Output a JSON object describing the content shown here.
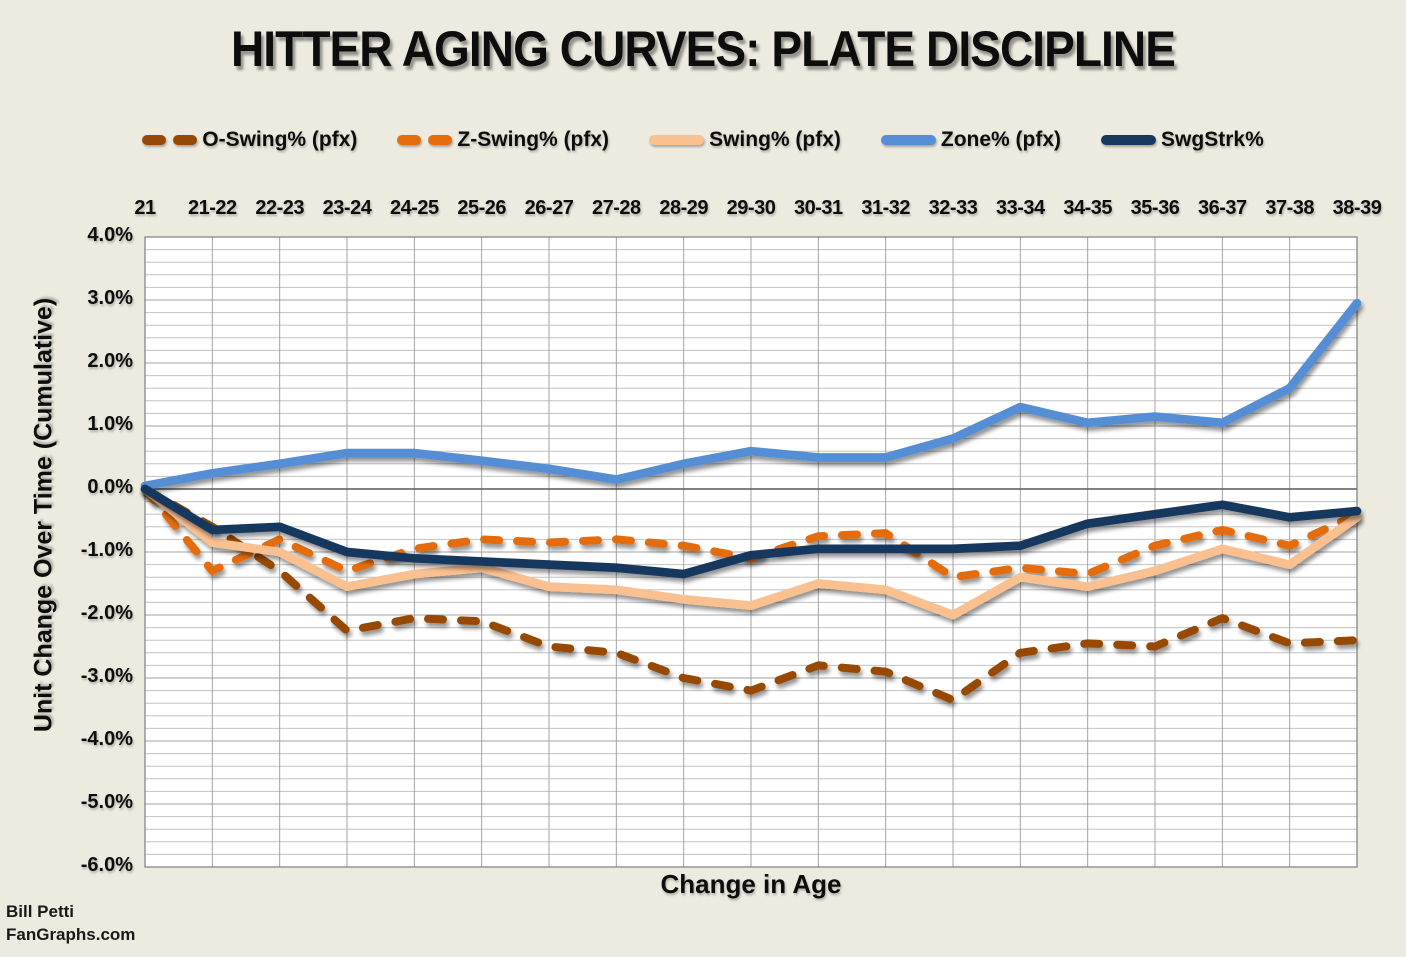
{
  "page": {
    "background": "#EDEBE0",
    "plot_background": "#FFFFFF"
  },
  "title": "HITTER AGING CURVES: PLATE DISCIPLINE",
  "attribution": {
    "line1": "Bill Petti",
    "line2": "FanGraphs.com"
  },
  "chart_data": {
    "type": "line",
    "title": "HITTER AGING CURVES: PLATE DISCIPLINE",
    "xlabel": "Change in Age",
    "ylabel": "Unit Change Over Time (Cumulative)",
    "ylim": [
      -6.0,
      4.0
    ],
    "y_major_step": 1.0,
    "y_minor_step": 0.2,
    "grid": true,
    "x_axis_labels_position": "top",
    "legend_position": "top",
    "y_tick_labels": [
      "4.0%",
      "3.0%",
      "2.0%",
      "1.0%",
      "0.0%",
      "-1.0%",
      "-2.0%",
      "-3.0%",
      "-4.0%",
      "-5.0%",
      "-6.0%"
    ],
    "categories": [
      "21",
      "21-22",
      "22-23",
      "23-24",
      "24-25",
      "25-26",
      "26-27",
      "27-28",
      "28-29",
      "29-30",
      "30-31",
      "31-32",
      "32-33",
      "33-34",
      "34-35",
      "35-36",
      "36-37",
      "37-38",
      "38-39"
    ],
    "series": [
      {
        "name": "O-Swing% (pfx)",
        "color": "#974806",
        "style": "dashed",
        "values": [
          0,
          -0.6,
          -1.3,
          -2.25,
          -2.05,
          -2.1,
          -2.5,
          -2.6,
          -3.0,
          -3.2,
          -2.8,
          -2.9,
          -3.35,
          -2.6,
          -2.45,
          -2.5,
          -2.05,
          -2.45,
          -2.4
        ]
      },
      {
        "name": "Z-Swing% (pfx)",
        "color": "#E46C0A",
        "style": "dashed",
        "values": [
          0,
          -1.3,
          -0.8,
          -1.3,
          -0.95,
          -0.8,
          -0.85,
          -0.8,
          -0.9,
          -1.1,
          -0.75,
          -0.7,
          -1.4,
          -1.25,
          -1.35,
          -0.9,
          -0.65,
          -0.9,
          -0.4
        ]
      },
      {
        "name": "Swing% (pfx)",
        "color": "#FAC090",
        "style": "solid",
        "values": [
          0,
          -0.85,
          -1.0,
          -1.55,
          -1.35,
          -1.25,
          -1.55,
          -1.6,
          -1.75,
          -1.85,
          -1.5,
          -1.6,
          -2.0,
          -1.4,
          -1.55,
          -1.3,
          -0.95,
          -1.2,
          -0.45
        ]
      },
      {
        "name": "Zone% (pfx)",
        "color": "#558ED5",
        "style": "solid",
        "values": [
          0.05,
          0.25,
          0.4,
          0.57,
          0.57,
          0.45,
          0.32,
          0.15,
          0.4,
          0.6,
          0.5,
          0.5,
          0.8,
          1.3,
          1.05,
          1.15,
          1.05,
          1.6,
          2.95
        ]
      },
      {
        "name": "SwgStrk%",
        "color": "#17375E",
        "style": "solid",
        "values": [
          0,
          -0.65,
          -0.6,
          -1.0,
          -1.1,
          -1.15,
          -1.2,
          -1.25,
          -1.35,
          -1.05,
          -0.95,
          -0.95,
          -0.95,
          -0.9,
          -0.55,
          -0.4,
          -0.25,
          -0.45,
          -0.35
        ]
      }
    ],
    "gridline_colors": {
      "minor": "#C3C3C3",
      "major": "#A3A3A3",
      "zero": "#595959",
      "border": "#7F7F7F"
    }
  }
}
